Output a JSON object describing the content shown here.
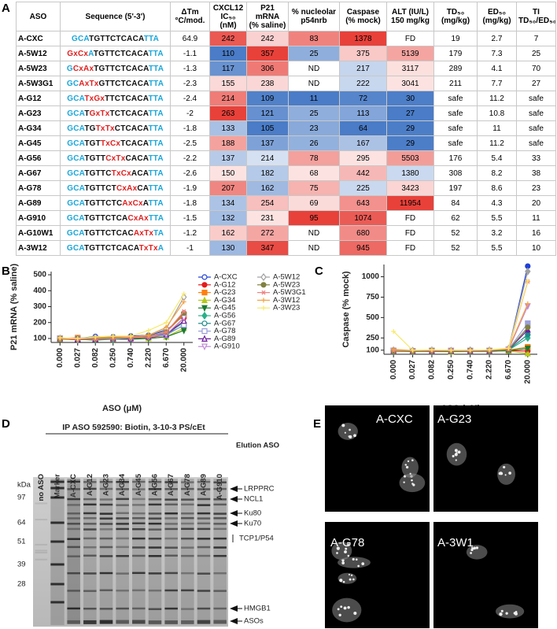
{
  "panel_labels": [
    "A",
    "B",
    "C",
    "D",
    "E"
  ],
  "table": {
    "header": [
      "ASO",
      "Sequence (5'-3')",
      "ΔTm\n°C/mod.",
      "CXCL12\nIC₅₀ (nM)",
      "P21 mRNA\n(% saline)",
      "% nucleolar\np54nrb",
      "Caspase\n(% mock)",
      "ALT (IU/L)\n150 mg/kg",
      "TD₅₀\n(mg/kg)",
      "ED₅₀\n(mg/kg)",
      "TI\nTD₅₀/ED₅₀"
    ],
    "rows": [
      [
        "A-CXC",
        "GCATGTTCTCACATTA",
        64.9,
        242,
        242,
        83,
        1378,
        "FD",
        19,
        2.7,
        7
      ],
      [
        "A-5W12",
        "GxCxATGTTCTCACATTA",
        -1.1,
        110,
        357,
        25,
        375,
        5139,
        179,
        7.3,
        25
      ],
      [
        "A-5W23",
        "GCxAxTGTTCTCACATTA",
        -1.3,
        117,
        306,
        "ND",
        217,
        3117,
        289,
        4.1,
        70
      ],
      [
        "A-5W3G1",
        "GCAxTxGTTCTCACATTA",
        -2.3,
        155,
        238,
        "ND",
        222,
        3041,
        211,
        7.7,
        27
      ],
      [
        "A-G12",
        "GCATxGxTTCTCACATTA",
        -2.4,
        214,
        109,
        11,
        72,
        30,
        "safe",
        11.2,
        "safe"
      ],
      [
        "A-G23",
        "GCATGxTxTCTCACATTA",
        -2,
        263,
        121,
        25,
        113,
        27,
        "safe",
        10.8,
        "safe"
      ],
      [
        "A-G34",
        "GCATGTxTxCTCACATTA",
        -1.8,
        133,
        105,
        23,
        64,
        29,
        "safe",
        11,
        "safe"
      ],
      [
        "A-G45",
        "GCATGTTxCxTCACATTA",
        -2.5,
        188,
        137,
        26,
        167,
        29,
        "safe",
        11.2,
        "safe"
      ],
      [
        "A-G56",
        "GCATGTTCxTxCACATTA",
        -2.2,
        137,
        214,
        78,
        295,
        5503,
        176,
        5.4,
        33
      ],
      [
        "A-G67",
        "GCATGTTCTxCxACATTA",
        -2.6,
        150,
        182,
        68,
        442,
        1380,
        308,
        8.2,
        38
      ],
      [
        "A-G78",
        "GCATGTTCTCxAxCATTA",
        -1.9,
        207,
        162,
        75,
        225,
        3423,
        197,
        8.6,
        23
      ],
      [
        "A-G89",
        "GCATGTTCTCAxCxATTA",
        -1.8,
        134,
        254,
        69,
        643,
        11954,
        84,
        4.3,
        20
      ],
      [
        "A-G910",
        "GCATGTTCTCACxAxTTA",
        -1.5,
        132,
        231,
        95,
        1074,
        "FD",
        62,
        5.5,
        11
      ],
      [
        "A-G10W1",
        "GCATGTTCTCACAxTxTA",
        -1.2,
        162,
        272,
        "ND",
        680,
        "FD",
        52,
        3.2,
        16
      ],
      [
        "A-3W12",
        "GCATGTTCTCACATxTxA",
        -1,
        130,
        347,
        "ND",
        945,
        "FD",
        52,
        5.5,
        10
      ]
    ]
  },
  "chart_data": [
    {
      "type": "line",
      "ylabel": "P21 mRNA (% saline)",
      "xlabel": "ASO (μM)",
      "categories": [
        "0.000",
        "0.027",
        "0.082",
        "0.250",
        "0.740",
        "2.220",
        "6.670",
        "20.000"
      ],
      "ylim": [
        75,
        520
      ],
      "yticks": [
        100,
        200,
        300,
        400,
        500
      ],
      "series": [
        {
          "name": "A-CXC",
          "color": "#1f3fd6",
          "marker": "circle",
          "filled": false,
          "values": [
            100,
            100,
            112,
            110,
            115,
            120,
            150,
            245
          ]
        },
        {
          "name": "A-G12",
          "color": "#e41a1c",
          "marker": "circle",
          "filled": true,
          "values": [
            95,
            92,
            95,
            100,
            95,
            105,
            120,
            230
          ]
        },
        {
          "name": "A-G23",
          "color": "#ff7f0e",
          "marker": "square",
          "filled": true,
          "values": [
            100,
            105,
            95,
            100,
            100,
            110,
            140,
            250
          ]
        },
        {
          "name": "A-G34",
          "color": "#b5c91a",
          "marker": "triangle",
          "filled": true,
          "values": [
            95,
            95,
            95,
            95,
            100,
            100,
            110,
            165
          ]
        },
        {
          "name": "A-G45",
          "color": "#1b7a2f",
          "marker": "triangle-down",
          "filled": true,
          "values": [
            100,
            95,
            90,
            95,
            95,
            100,
            110,
            150
          ]
        },
        {
          "name": "A-G56",
          "color": "#2ab08a",
          "marker": "diamond",
          "filled": true,
          "values": [
            100,
            95,
            95,
            95,
            100,
            110,
            130,
            200
          ]
        },
        {
          "name": "A-G67",
          "color": "#1f8a8a",
          "marker": "circle",
          "filled": false,
          "values": [
            100,
            100,
            100,
            105,
            110,
            115,
            130,
            180
          ]
        },
        {
          "name": "A-G78",
          "color": "#9a9fd8",
          "marker": "square",
          "filled": false,
          "values": [
            100,
            100,
            95,
            100,
            105,
            110,
            120,
            185
          ]
        },
        {
          "name": "A-G89",
          "color": "#6a1b9a",
          "marker": "triangle",
          "filled": false,
          "values": [
            100,
            95,
            95,
            100,
            100,
            110,
            125,
            210
          ]
        },
        {
          "name": "A-G910",
          "color": "#c08ad8",
          "marker": "triangle-down",
          "filled": false,
          "values": [
            100,
            100,
            100,
            100,
            105,
            110,
            125,
            230
          ]
        },
        {
          "name": "A-5W12",
          "color": "#a0a0a0",
          "marker": "diamond",
          "filled": false,
          "values": [
            100,
            95,
            100,
            105,
            110,
            120,
            160,
            360
          ]
        },
        {
          "name": "A-5W23",
          "color": "#808040",
          "marker": "circle",
          "filled": true,
          "values": [
            100,
            100,
            100,
            105,
            110,
            115,
            140,
            260
          ]
        },
        {
          "name": "A-5W3G1",
          "color": "#f08080",
          "marker": "asterisk",
          "filled": true,
          "values": [
            100,
            95,
            95,
            100,
            105,
            110,
            140,
            270
          ]
        },
        {
          "name": "A-3W12",
          "color": "#f5a142",
          "marker": "plus",
          "filled": true,
          "values": [
            100,
            100,
            105,
            110,
            110,
            120,
            170,
            330
          ]
        },
        {
          "name": "A-3W23",
          "color": "#f7e96b",
          "marker": "plus",
          "filled": true,
          "values": [
            105,
            100,
            110,
            115,
            115,
            150,
            200,
            380
          ]
        }
      ]
    },
    {
      "type": "line",
      "ylabel": "Caspase (% mock)",
      "xlabel": "ASO (μM)",
      "categories": [
        "0.000",
        "0.027",
        "0.082",
        "0.250",
        "0.740",
        "2.220",
        "6.670",
        "20.000"
      ],
      "ylim": [
        50,
        1150
      ],
      "yticks": [
        100,
        250,
        500,
        750,
        1000
      ],
      "series": [
        {
          "color": "#1f3fd6",
          "values": [
            100,
            95,
            100,
            95,
            95,
            95,
            110,
            1130
          ]
        },
        {
          "color": "#e41a1c",
          "values": [
            90,
            85,
            90,
            90,
            90,
            85,
            95,
            90
          ]
        },
        {
          "color": "#ff7f0e",
          "values": [
            95,
            90,
            90,
            90,
            90,
            90,
            100,
            140
          ]
        },
        {
          "color": "#b5c91a",
          "values": [
            85,
            85,
            85,
            80,
            85,
            85,
            90,
            60
          ]
        },
        {
          "color": "#1b7a2f",
          "values": [
            90,
            85,
            90,
            85,
            90,
            90,
            95,
            120
          ]
        },
        {
          "color": "#2ab08a",
          "values": [
            90,
            90,
            90,
            90,
            90,
            90,
            100,
            250
          ]
        },
        {
          "color": "#1f8a8a",
          "values": [
            95,
            90,
            95,
            90,
            95,
            95,
            105,
            290
          ]
        },
        {
          "color": "#9a9fd8",
          "values": [
            95,
            90,
            95,
            95,
            95,
            95,
            110,
            430
          ]
        },
        {
          "color": "#6a1b9a",
          "values": [
            90,
            90,
            90,
            90,
            90,
            90,
            105,
            350
          ]
        },
        {
          "color": "#c08ad8",
          "values": [
            95,
            90,
            95,
            95,
            95,
            95,
            110,
            640
          ]
        },
        {
          "color": "#a0a0a0",
          "values": [
            100,
            95,
            100,
            95,
            100,
            100,
            120,
            1065
          ]
        },
        {
          "color": "#808040",
          "values": [
            90,
            90,
            95,
            90,
            95,
            95,
            105,
            380
          ]
        },
        {
          "color": "#f08080",
          "values": [
            95,
            95,
            95,
            95,
            95,
            100,
            115,
            940
          ]
        },
        {
          "color": "#f5a142",
          "values": [
            110,
            95,
            100,
            100,
            100,
            100,
            120,
            670
          ]
        },
        {
          "color": "#f7e96b",
          "values": [
            330,
            100,
            105,
            100,
            100,
            105,
            125,
            950
          ]
        }
      ]
    }
  ],
  "gel": {
    "title": "IP ASO 592590: Biotin, 3-10-3 PS/cEt",
    "lanes": [
      "no ASO",
      "Marker",
      "A-CXC",
      "A-G12",
      "A-G23",
      "A-G34",
      "A-G45",
      "A-G56",
      "A-G67",
      "A-G78",
      "A-G89",
      "A-G910"
    ],
    "lane_group": "Elution ASO",
    "unit": "kDa",
    "markers": [
      "97",
      "64",
      "51",
      "39",
      "28"
    ],
    "bands": [
      "LRPPRC",
      "NCL1",
      "Ku80",
      "Ku70",
      "TCP1/P54",
      "HMGB1",
      "ASOs"
    ]
  },
  "micrographs": [
    "A-CXC",
    "A-G23",
    "A-G78",
    "A-3W1"
  ]
}
